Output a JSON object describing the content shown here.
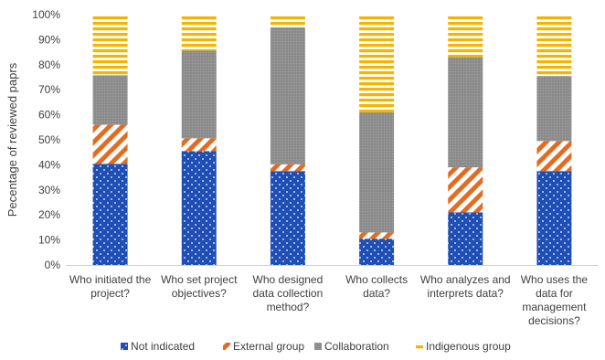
{
  "chart_data": {
    "type": "bar",
    "stacked": true,
    "percent": true,
    "ylabel": "Pecentage of reviewed paprs",
    "ylim": [
      0,
      100
    ],
    "yticks": [
      "0%",
      "10%",
      "20%",
      "30%",
      "40%",
      "50%",
      "60%",
      "70%",
      "80%",
      "90%",
      "100%"
    ],
    "categories": [
      [
        "Who initiated the",
        "project?"
      ],
      [
        "Who set project",
        "objectives?"
      ],
      [
        "Who designed",
        "data collection",
        "method?"
      ],
      [
        "Who collects",
        "data?"
      ],
      [
        "Who analyzes and",
        "interprets data?"
      ],
      [
        "Who uses the",
        "data for",
        "management",
        "decisions?"
      ]
    ],
    "series": [
      {
        "name": "Not indicated",
        "values": [
          40.4,
          45.5,
          37.5,
          10.5,
          21.0,
          37.5
        ]
      },
      {
        "name": "External group",
        "values": [
          15.6,
          5.1,
          2.7,
          2.5,
          18.0,
          12.0
        ]
      },
      {
        "name": "Collaboration",
        "values": [
          19.8,
          35.0,
          54.7,
          48.0,
          44.0,
          26.0
        ]
      },
      {
        "name": "Indigenous group",
        "values": [
          24.2,
          14.4,
          5.1,
          39.0,
          17.0,
          24.5
        ]
      }
    ],
    "legend_position": "bottom",
    "grid": false
  },
  "colors": {
    "not_indicated": "#1f4fb4",
    "external_group": "#e46c21",
    "collaboration": "#8c8c8c",
    "indigenous_group": "#f5b400",
    "axis": "#d0d0d0",
    "text": "#404040"
  }
}
